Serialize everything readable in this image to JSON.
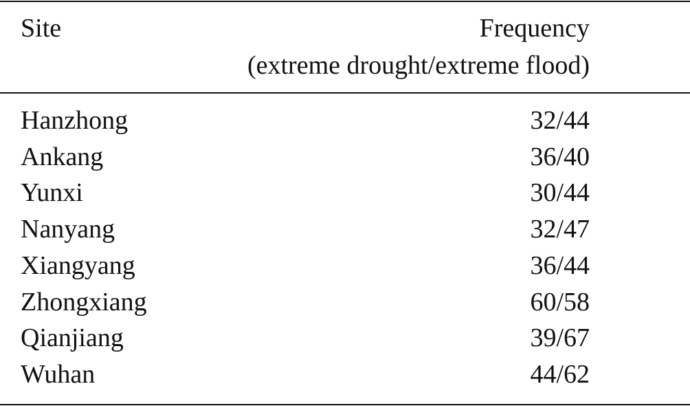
{
  "header": {
    "site": "Site",
    "frequency": "Frequency",
    "frequency_note": "(extreme drought/extreme flood)"
  },
  "table": {
    "rows": [
      [
        "Hanzhong",
        "32/44"
      ],
      [
        "Ankang",
        "36/40"
      ],
      [
        "Yunxi",
        "30/44"
      ],
      [
        "Nanyang",
        "32/47"
      ],
      [
        "Xiangyang",
        "36/44"
      ],
      [
        "Zhongxiang",
        "60/58"
      ],
      [
        "Qianjiang",
        "39/67"
      ],
      [
        "Wuhan",
        "44/62"
      ]
    ]
  }
}
